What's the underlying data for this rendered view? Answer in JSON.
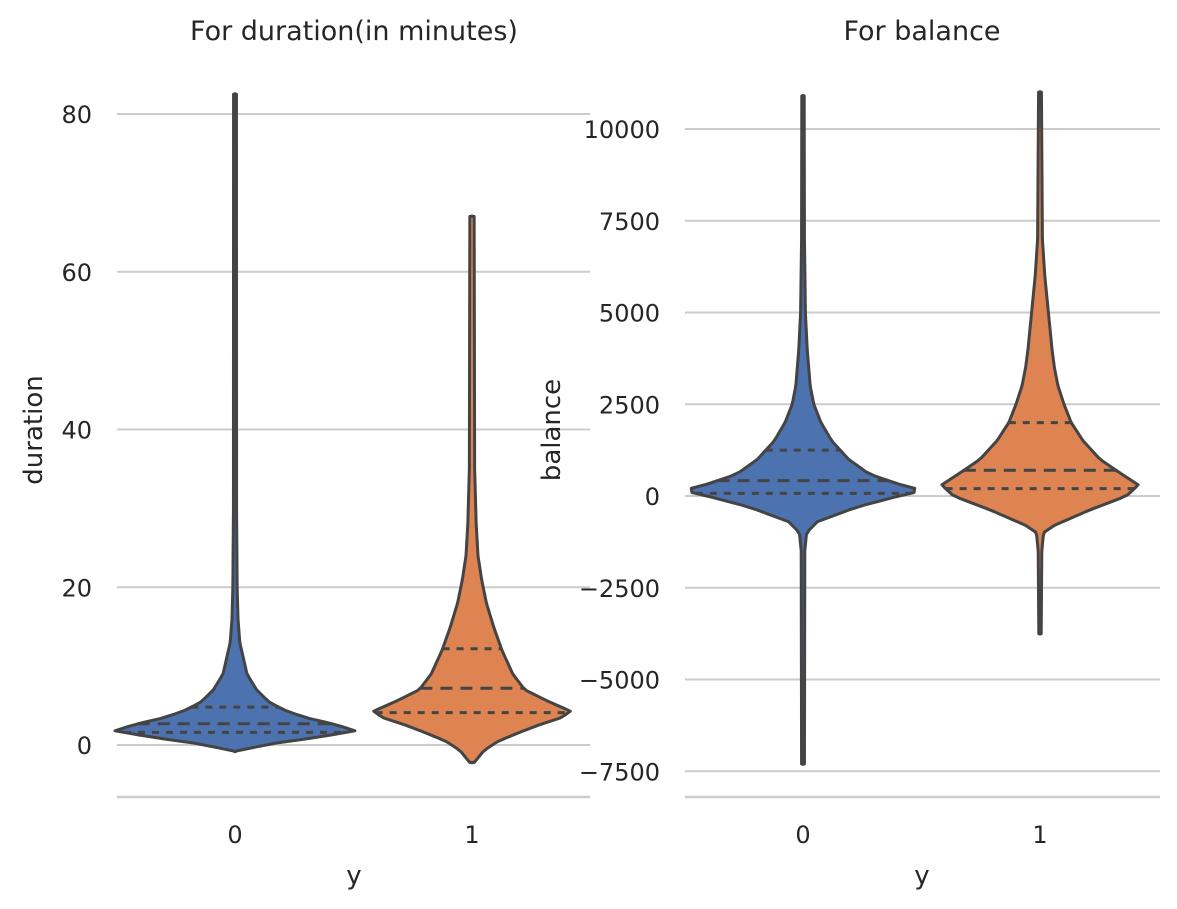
{
  "chart_data": [
    {
      "type": "violin",
      "title": "For duration(in minutes)",
      "xlabel": "y",
      "ylabel": "duration",
      "categories": [
        "0",
        "1"
      ],
      "yticks": [
        "0",
        "20",
        "40",
        "60",
        "80"
      ],
      "ylim": [
        -6.5,
        86
      ],
      "grid": true,
      "series": [
        {
          "category": "0",
          "color": "#4c72b0",
          "range": [
            -0.8,
            82.5
          ],
          "quartiles": [
            1.6,
            2.7,
            4.8
          ],
          "profile": [
            [
              -0.8,
              0
            ],
            [
              0.2,
              0.32
            ],
            [
              1.0,
              0.7
            ],
            [
              1.8,
              1.0
            ],
            [
              2.6,
              0.84
            ],
            [
              3.5,
              0.58
            ],
            [
              4.5,
              0.4
            ],
            [
              5.5,
              0.28
            ],
            [
              7,
              0.18
            ],
            [
              9,
              0.1
            ],
            [
              11,
              0.07
            ],
            [
              13,
              0.04
            ],
            [
              16,
              0.025
            ],
            [
              20,
              0.018
            ],
            [
              30,
              0.013
            ],
            [
              82.5,
              0.012
            ]
          ]
        },
        {
          "category": "1",
          "color": "#dd8452",
          "range": [
            -2.2,
            67
          ],
          "quartiles": [
            4.1,
            7.2,
            12.2
          ],
          "profile": [
            [
              -2.2,
              0.02
            ],
            [
              -0.7,
              0.1
            ],
            [
              0.5,
              0.22
            ],
            [
              1.5,
              0.38
            ],
            [
              2.5,
              0.55
            ],
            [
              3.5,
              0.75
            ],
            [
              4.3,
              0.82
            ],
            [
              5.5,
              0.64
            ],
            [
              7,
              0.44
            ],
            [
              9,
              0.34
            ],
            [
              12,
              0.25
            ],
            [
              15,
              0.18
            ],
            [
              18,
              0.12
            ],
            [
              21,
              0.08
            ],
            [
              24,
              0.05
            ],
            [
              28,
              0.035
            ],
            [
              35,
              0.022
            ],
            [
              67,
              0.018
            ]
          ]
        }
      ]
    },
    {
      "type": "violin",
      "title": "For balance",
      "xlabel": "y",
      "ylabel": "balance",
      "categories": [
        "0",
        "1"
      ],
      "yticks": [
        "10000",
        "7500",
        "5000",
        "2500",
        "0",
        "−2500",
        "−5000",
        "−7500"
      ],
      "ylim": [
        -8200,
        11200
      ],
      "grid": true,
      "series": [
        {
          "category": "0",
          "color": "#4c72b0",
          "range": [
            -7300,
            10900
          ],
          "quartiles": [
            70,
            420,
            1250
          ],
          "profile": [
            [
              -7300,
              0.012
            ],
            [
              -1500,
              0.015
            ],
            [
              -1000,
              0.03
            ],
            [
              -700,
              0.12
            ],
            [
              -300,
              0.45
            ],
            [
              0,
              0.8
            ],
            [
              150,
              1.0
            ],
            [
              300,
              0.82
            ],
            [
              600,
              0.55
            ],
            [
              1000,
              0.38
            ],
            [
              1500,
              0.24
            ],
            [
              2000,
              0.15
            ],
            [
              2500,
              0.09
            ],
            [
              3000,
              0.06
            ],
            [
              4000,
              0.035
            ],
            [
              5000,
              0.02
            ],
            [
              7000,
              0.012
            ],
            [
              10900,
              0.01
            ]
          ]
        },
        {
          "category": "1",
          "color": "#dd8452",
          "range": [
            -3750,
            11000
          ],
          "quartiles": [
            200,
            700,
            2000
          ],
          "profile": [
            [
              -3750,
              0.01
            ],
            [
              -1500,
              0.015
            ],
            [
              -1000,
              0.03
            ],
            [
              -800,
              0.12
            ],
            [
              -400,
              0.4
            ],
            [
              0,
              0.72
            ],
            [
              300,
              0.82
            ],
            [
              600,
              0.68
            ],
            [
              1000,
              0.5
            ],
            [
              1500,
              0.36
            ],
            [
              2000,
              0.26
            ],
            [
              2500,
              0.2
            ],
            [
              3000,
              0.15
            ],
            [
              3500,
              0.12
            ],
            [
              4000,
              0.1
            ],
            [
              5000,
              0.07
            ],
            [
              6000,
              0.04
            ],
            [
              7000,
              0.02
            ],
            [
              11000,
              0.012
            ]
          ]
        }
      ]
    }
  ]
}
